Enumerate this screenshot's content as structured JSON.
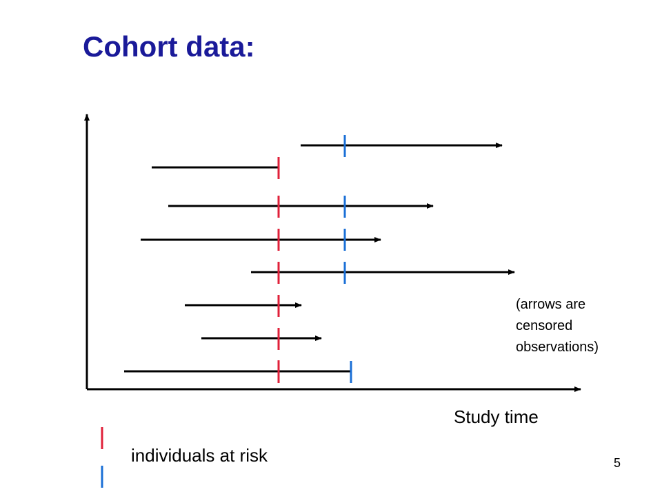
{
  "slide": {
    "title": "Cohort data:",
    "page_number": "5"
  },
  "diagram": {
    "x_axis_label": "Study time",
    "note_lines": [
      "(arrows are",
      "censored",
      "observations)"
    ],
    "legend_label": "individuals at risk",
    "colors": {
      "title": "#1a1a99",
      "line": "#000000",
      "red_marker": "#e0203a",
      "blue_marker": "#1a6fd6"
    }
  }
}
